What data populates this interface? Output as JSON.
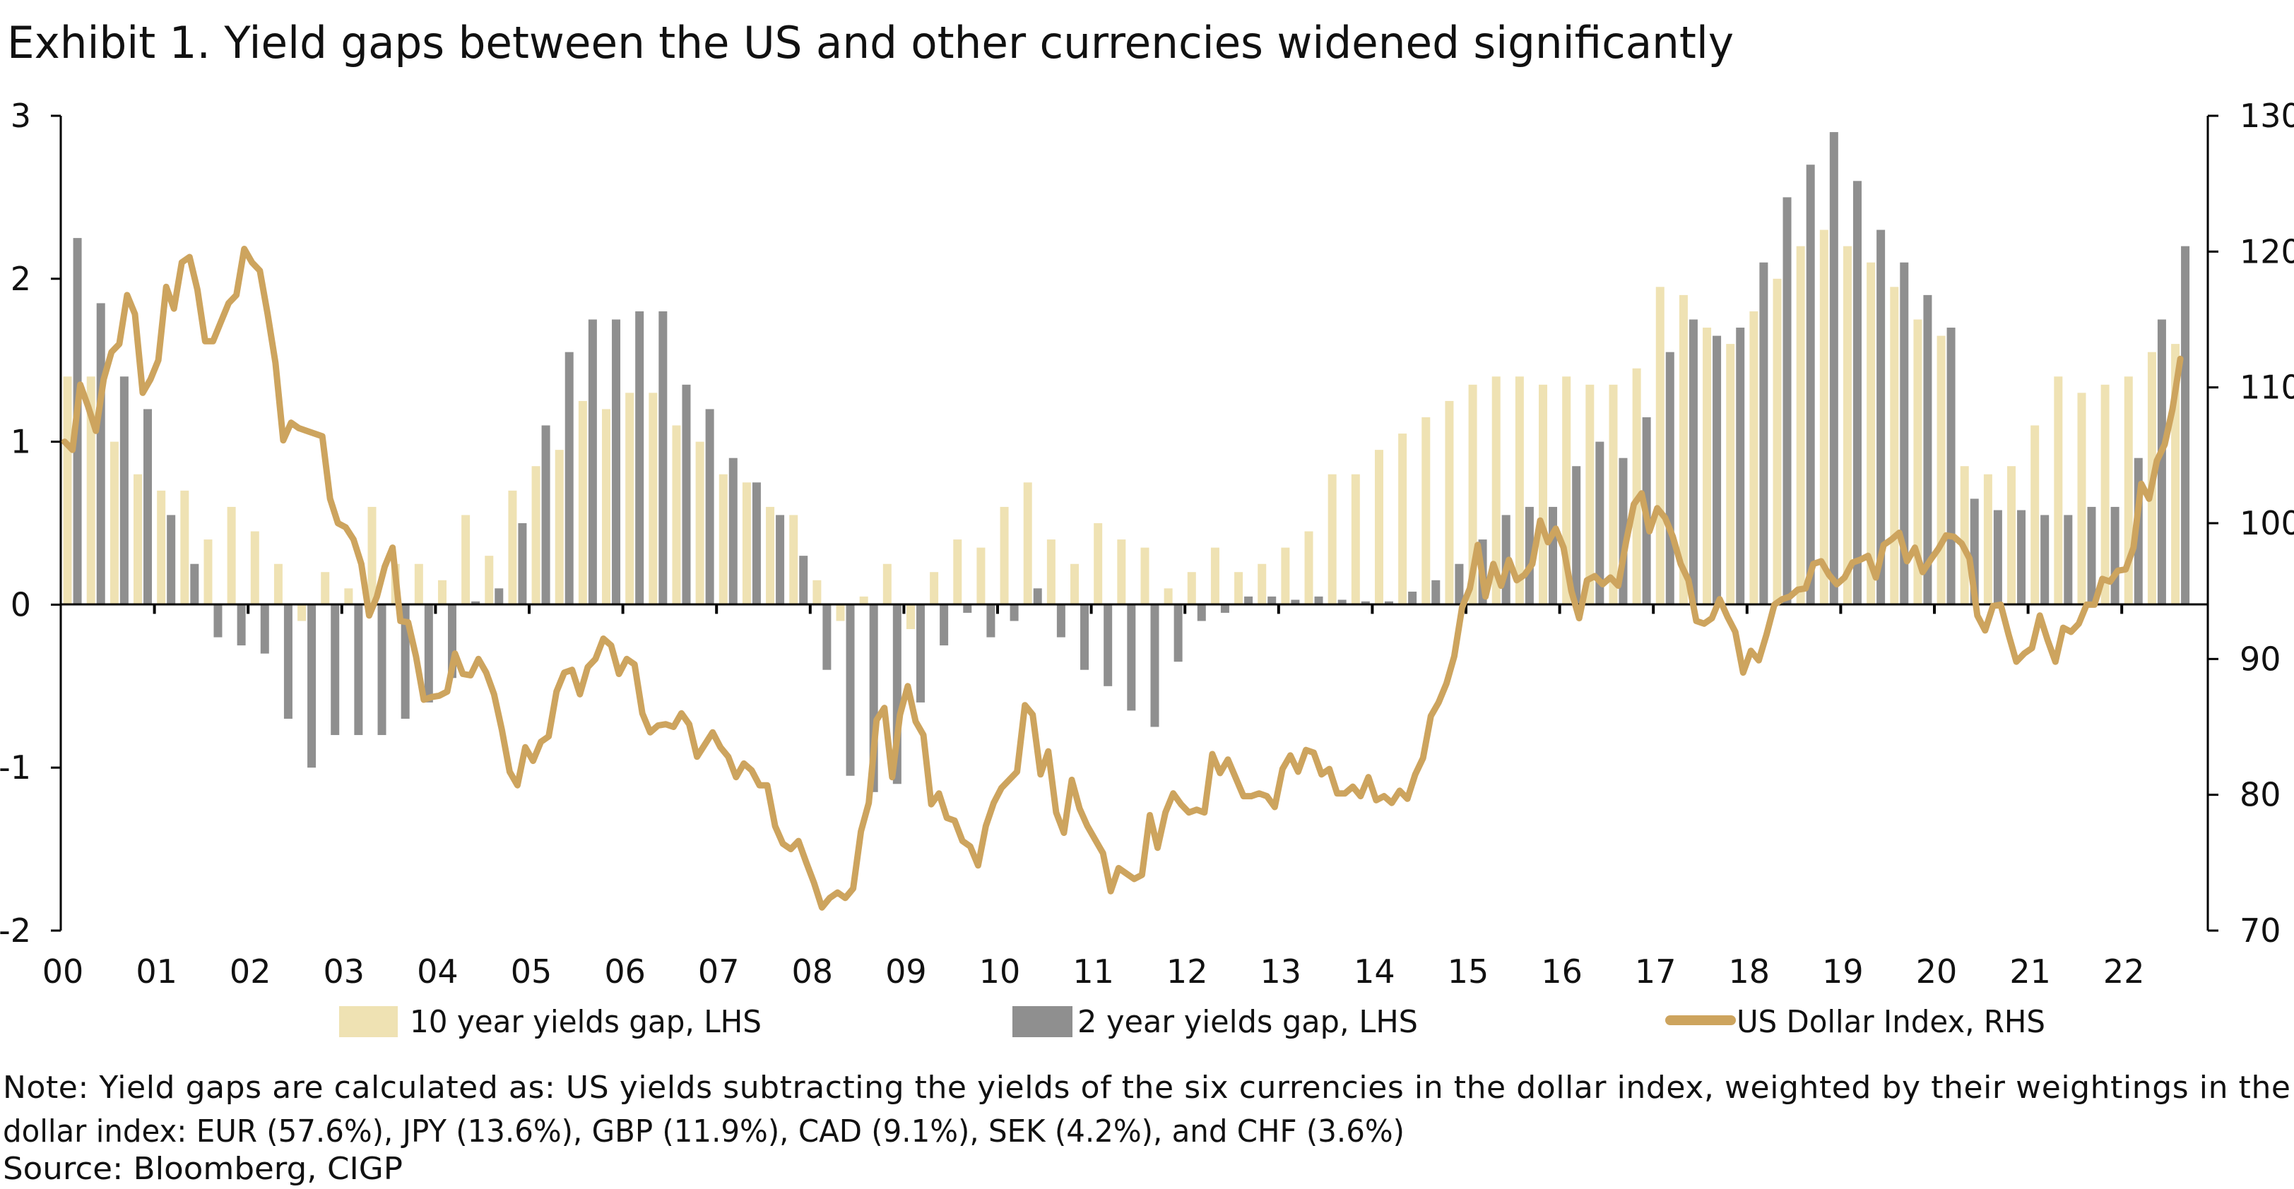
{
  "title": "Exhibit 1. Yield gaps between the US and other currencies widened significantly",
  "note_line1": "Note: Yield gaps are calculated as: US yields subtracting the yields of the six currencies in the dollar index, weighted by their weightings in the",
  "note_line2": "dollar index: EUR (57.6%), JPY (13.6%), GBP (11.9%), CAD (9.1%), SEK (4.2%), and CHF (3.6%)",
  "source": "Source: Bloomberg, CIGP",
  "chart_data": {
    "type": "bar+line",
    "title": "Exhibit 1. Yield gaps between the US and other currencies widened significantly",
    "x_tick_labels": [
      "00",
      "01",
      "02",
      "03",
      "04",
      "05",
      "06",
      "07",
      "08",
      "09",
      "10",
      "11",
      "12",
      "13",
      "14",
      "15",
      "16",
      "17",
      "18",
      "19",
      "20",
      "21",
      "22"
    ],
    "y_left": {
      "ticks": [
        "3",
        "2",
        "1",
        "0",
        "-1",
        "-2"
      ],
      "range": [
        -2,
        3
      ]
    },
    "y_right": {
      "ticks": [
        "130",
        "120",
        "110",
        "100",
        "90",
        "80",
        "70"
      ],
      "range": [
        70,
        130
      ]
    },
    "grid": false,
    "legend_position": "bottom",
    "colors": {
      "ten_year": "#EFE2B3",
      "two_year": "#8F8F8F",
      "dxy": "#CDA45E"
    },
    "series": [
      {
        "name": "10 year yields gap, LHS",
        "type": "bar",
        "axis": "left",
        "quarterly": {
          "2000": [
            1.4,
            1.4,
            1.0,
            0.8
          ],
          "2001": [
            0.7,
            0.7,
            0.4,
            0.6
          ],
          "2002": [
            0.45,
            0.25,
            -0.1,
            0.2
          ],
          "2003": [
            0.1,
            0.6,
            0.25,
            0.25
          ],
          "2004": [
            0.15,
            0.55,
            0.3,
            0.7
          ],
          "2005": [
            0.85,
            0.95,
            1.25,
            1.2
          ],
          "2006": [
            1.3,
            1.3,
            1.1,
            1.0
          ],
          "2007": [
            0.8,
            0.75,
            0.6,
            0.55
          ],
          "2008": [
            0.15,
            -0.1,
            0.05,
            0.25
          ],
          "2009": [
            -0.15,
            0.2,
            0.4,
            0.35
          ],
          "2010": [
            0.6,
            0.75,
            0.4,
            0.25
          ],
          "2011": [
            0.5,
            0.4,
            0.35,
            0.1
          ],
          "2012": [
            0.2,
            0.35,
            0.2,
            0.25
          ],
          "2013": [
            0.35,
            0.45,
            0.8,
            0.8
          ],
          "2014": [
            0.95,
            1.05,
            1.15,
            1.25
          ],
          "2015": [
            1.35,
            1.4,
            1.4,
            1.35
          ],
          "2016": [
            1.4,
            1.35,
            1.35,
            1.45
          ],
          "2017": [
            1.95,
            1.9,
            1.7,
            1.6
          ],
          "2018": [
            1.8,
            2.0,
            2.2,
            2.3
          ],
          "2019": [
            2.2,
            2.1,
            1.95,
            1.75
          ],
          "2020": [
            1.65,
            0.85,
            0.8,
            0.85
          ],
          "2021": [
            1.1,
            1.4,
            1.3,
            1.35
          ],
          "2022": [
            1.4,
            1.55,
            1.6
          ]
        }
      },
      {
        "name": "2 year yields gap, LHS",
        "type": "bar",
        "axis": "left",
        "quarterly": {
          "2000": [
            2.25,
            1.85,
            1.4,
            1.2
          ],
          "2001": [
            0.55,
            0.25,
            -0.2,
            -0.25
          ],
          "2002": [
            -0.3,
            -0.7,
            -1.0,
            -0.8
          ],
          "2003": [
            -0.8,
            -0.8,
            -0.7,
            -0.6
          ],
          "2004": [
            -0.45,
            0.02,
            0.1,
            0.5
          ],
          "2005": [
            1.1,
            1.55,
            1.75,
            1.75
          ],
          "2006": [
            1.8,
            1.8,
            1.35,
            1.2
          ],
          "2007": [
            0.9,
            0.75,
            0.55,
            0.3
          ],
          "2008": [
            -0.4,
            -1.05,
            -1.15,
            -1.1
          ],
          "2009": [
            -0.6,
            -0.25,
            -0.05,
            -0.2
          ],
          "2010": [
            -0.1,
            0.1,
            -0.2,
            -0.4
          ],
          "2011": [
            -0.5,
            -0.65,
            -0.75,
            -0.35
          ],
          "2012": [
            -0.1,
            -0.05,
            0.05,
            0.05
          ],
          "2013": [
            0.03,
            0.05,
            0.03,
            0.02
          ],
          "2014": [
            0.02,
            0.08,
            0.15,
            0.25
          ],
          "2015": [
            0.4,
            0.55,
            0.6,
            0.6
          ],
          "2016": [
            0.85,
            1.0,
            0.9,
            1.15
          ],
          "2017": [
            1.55,
            1.75,
            1.65,
            1.7
          ],
          "2018": [
            2.1,
            2.5,
            2.7,
            2.9
          ],
          "2019": [
            2.6,
            2.3,
            2.1,
            1.9
          ],
          "2020": [
            1.7,
            0.65,
            0.58,
            0.58
          ],
          "2021": [
            0.55,
            0.55,
            0.6,
            0.6
          ],
          "2022": [
            0.9,
            1.75,
            2.2
          ]
        }
      },
      {
        "name": "US Dollar Index, RHS",
        "type": "line",
        "axis": "right",
        "monthly": {
          "2000": [
            106.0,
            105.4,
            110.2,
            108.6,
            106.8,
            110.6,
            112.6,
            113.2,
            116.8,
            115.4,
            109.6,
            110.6
          ],
          "2001": [
            112.0,
            117.4,
            115.8,
            119.2,
            119.6,
            117.2,
            113.4,
            113.4,
            114.8,
            116.2,
            116.8,
            120.2
          ],
          "2002": [
            119.2,
            118.6,
            115.4,
            111.8,
            106.1,
            107.4,
            107.0,
            106.8,
            null,
            106.4,
            101.8,
            100.0
          ],
          "2003": [
            99.7,
            98.8,
            97.0,
            93.2,
            94.6,
            96.8,
            98.2,
            92.8,
            92.7,
            90.2,
            87.0,
            87.2
          ],
          "2004": [
            87.3,
            87.6,
            90.4,
            88.9,
            88.8,
            90.0,
            89.0,
            87.4,
            84.8,
            81.7,
            80.7,
            83.5
          ],
          "2005": [
            82.5,
            83.9,
            84.3,
            87.6,
            89.0,
            89.2,
            87.4,
            89.4,
            90.0,
            91.5,
            91.0,
            88.9
          ],
          "2006": [
            90.0,
            89.6,
            86.0,
            84.6,
            85.1,
            85.2,
            85.0,
            86.0,
            85.2,
            82.8,
            null,
            84.6
          ],
          "2007": [
            83.5,
            82.8,
            81.3,
            82.3,
            81.8,
            80.7,
            80.7,
            77.7,
            76.4,
            76.0,
            76.6,
            75.0
          ],
          "2008": [
            73.5,
            71.7,
            72.4,
            72.8,
            72.4,
            73.1,
            77.3,
            79.4,
            85.5,
            86.4,
            81.3,
            85.9
          ],
          "2009": [
            88.0,
            85.4,
            84.4,
            79.3,
            80.1,
            78.3,
            78.1,
            76.6,
            76.2,
            74.8,
            77.7,
            79.4
          ],
          "2010": [
            80.5,
            null,
            81.7,
            86.6,
            85.9,
            81.5,
            83.2,
            78.7,
            77.2,
            81.1,
            79.0,
            77.7
          ],
          "2011": [
            76.7,
            75.7,
            72.9,
            74.6,
            null,
            73.8,
            74.1,
            78.5,
            76.1,
            78.7,
            80.1,
            79.3
          ],
          "2012": [
            78.7,
            78.9,
            78.7,
            83.0,
            81.6,
            82.6,
            null,
            79.9,
            79.9,
            80.1,
            79.9,
            79.1
          ],
          "2013": [
            81.9,
            82.9,
            81.7,
            83.3,
            83.1,
            81.5,
            81.9,
            80.1,
            80.1,
            80.6,
            79.9,
            81.3
          ],
          "2014": [
            79.6,
            79.9,
            79.4,
            80.3,
            79.7,
            81.5,
            82.7,
            85.8,
            86.8,
            88.2,
            90.2,
            93.8
          ],
          "2015": [
            95.2,
            98.4,
            94.6,
            97.0,
            95.4,
            97.3,
            95.8,
            96.2,
            97.0,
            100.2,
            98.6,
            99.6
          ],
          "2016": [
            98.2,
            95.0,
            93.0,
            95.8,
            96.1,
            95.5,
            96.0,
            95.4,
            98.6,
            101.4,
            102.2,
            99.4
          ],
          "2017": [
            101.1,
            100.4,
            99.0,
            97.0,
            95.8,
            92.8,
            92.6,
            93.0,
            94.4,
            93.1,
            92.0,
            89.0
          ],
          "2018": [
            90.6,
            89.9,
            91.8,
            94.0,
            94.4,
            94.6,
            95.1,
            95.2,
            97.0,
            97.2,
            96.2,
            95.5
          ],
          "2019": [
            96.0,
            97.1,
            97.3,
            97.6,
            96.0,
            98.4,
            98.8,
            99.3,
            97.2,
            98.2,
            96.4,
            97.3
          ],
          "2020": [
            98.1,
            99.1,
            99.0,
            98.5,
            97.4,
            93.2,
            92.1,
            93.9,
            94.0,
            91.8,
            89.8,
            90.4
          ],
          "2021": [
            90.8,
            93.2,
            91.4,
            89.8,
            92.3,
            92.0,
            92.6,
            94.0,
            94.0,
            95.9,
            95.7,
            96.5
          ],
          "2022": [
            96.6,
            98.2,
            102.9,
            101.8,
            104.6,
            105.8,
            108.4,
            112.1
          ]
        }
      }
    ]
  }
}
